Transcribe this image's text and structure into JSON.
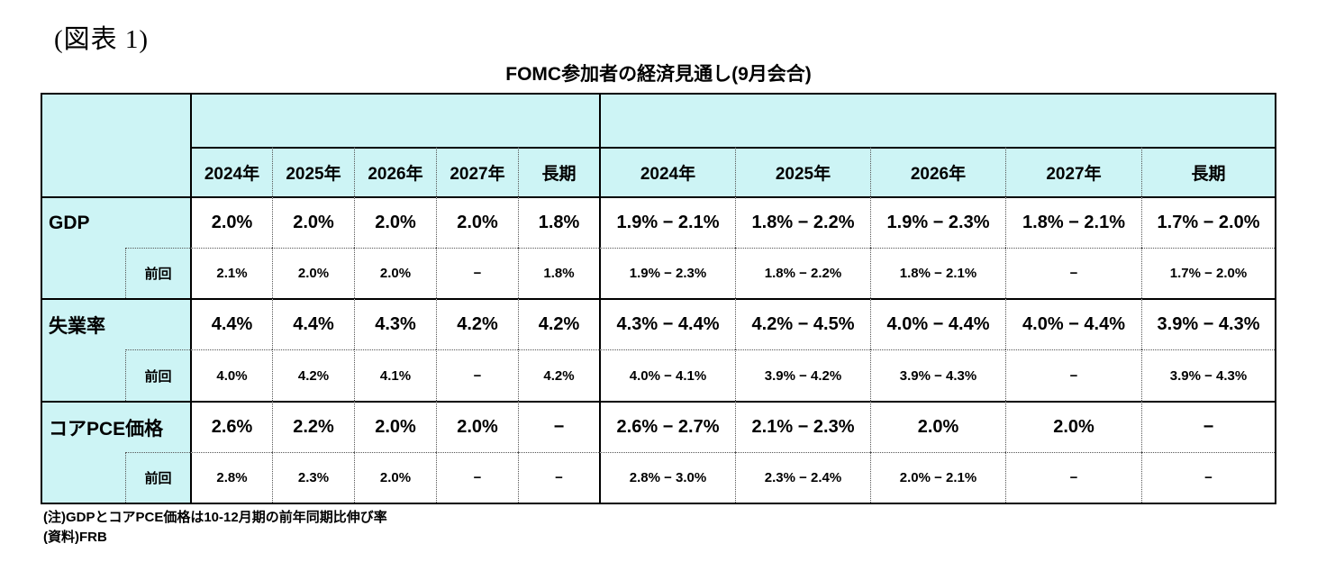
{
  "figure_label": "(図表 1)",
  "title": "FOMC参加者の経済見通し(9月会合)",
  "colors": {
    "header_bg": "#CDF4F5",
    "border": "#000000",
    "cell_bg": "#FFFFFF",
    "text": "#000000"
  },
  "chart_data": {
    "type": "table",
    "title": "FOMC参加者の経済見通し(9月会合)",
    "column_group_headers": [
      "",
      ""
    ],
    "columns_median": [
      "2024年",
      "2025年",
      "2026年",
      "2027年",
      "長期"
    ],
    "columns_range": [
      "2024年",
      "2025年",
      "2026年",
      "2027年",
      "長期"
    ],
    "previous_label": "前回",
    "rows": [
      {
        "label": "GDP",
        "median": [
          "2.0%",
          "2.0%",
          "2.0%",
          "2.0%",
          "1.8%"
        ],
        "median_prev": [
          "2.1%",
          "2.0%",
          "2.0%",
          "−",
          "1.8%"
        ],
        "range": [
          "1.9% − 2.1%",
          "1.8% − 2.2%",
          "1.9% − 2.3%",
          "1.8% − 2.1%",
          "1.7% − 2.0%"
        ],
        "range_prev": [
          "1.9% − 2.3%",
          "1.8% − 2.2%",
          "1.8% − 2.1%",
          "−",
          "1.7% − 2.0%"
        ]
      },
      {
        "label": "失業率",
        "median": [
          "4.4%",
          "4.4%",
          "4.3%",
          "4.2%",
          "4.2%"
        ],
        "median_prev": [
          "4.0%",
          "4.2%",
          "4.1%",
          "−",
          "4.2%"
        ],
        "range": [
          "4.3% − 4.4%",
          "4.2% − 4.5%",
          "4.0% − 4.4%",
          "4.0% − 4.4%",
          "3.9% − 4.3%"
        ],
        "range_prev": [
          "4.0% − 4.1%",
          "3.9% − 4.2%",
          "3.9% − 4.3%",
          "−",
          "3.9% − 4.3%"
        ]
      },
      {
        "label": "コアPCE価格",
        "median": [
          "2.6%",
          "2.2%",
          "2.0%",
          "2.0%",
          "−"
        ],
        "median_prev": [
          "2.8%",
          "2.3%",
          "2.0%",
          "−",
          "−"
        ],
        "range": [
          "2.6% − 2.7%",
          "2.1% − 2.3%",
          "2.0%",
          "2.0%",
          "−"
        ],
        "range_prev": [
          "2.8% − 3.0%",
          "2.3% − 2.4%",
          "2.0% − 2.1%",
          "−",
          "−"
        ]
      }
    ]
  },
  "notes": [
    "(注)GDPとコアPCE価格は10-12月期の前年同期比伸び率",
    "(資料)FRB"
  ]
}
